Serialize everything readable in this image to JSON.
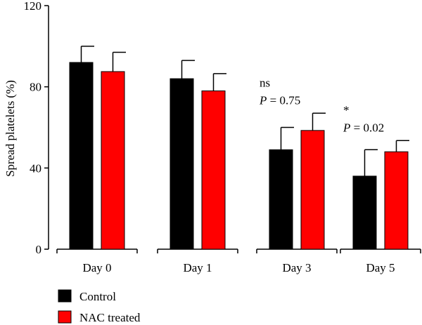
{
  "chart_data": {
    "type": "bar",
    "categories": [
      "Day 0",
      "Day 1",
      "Day 3",
      "Day 5"
    ],
    "ylabel": "Spread platelets (%)",
    "xlabel": "",
    "ylim": [
      0,
      120
    ],
    "yticks": [
      "0",
      "40",
      "80",
      "120"
    ],
    "series": [
      {
        "name": "Control",
        "color": "#000000",
        "values": [
          92,
          84,
          49,
          36
        ],
        "errors": [
          8,
          9,
          11,
          13
        ]
      },
      {
        "name": "NAC treated",
        "color": "#ff0000",
        "values": [
          87.5,
          78,
          58.5,
          48
        ],
        "errors": [
          9.5,
          8.5,
          8.5,
          5.5
        ]
      }
    ],
    "annotations": [
      {
        "category": "Day 3",
        "significance": "ns",
        "p_label": "P",
        "p_value": " = 0.75"
      },
      {
        "category": "Day 5",
        "significance": "*",
        "p_label": "P",
        "p_value": " = 0.02"
      }
    ],
    "legend_position": "bottom-left"
  }
}
